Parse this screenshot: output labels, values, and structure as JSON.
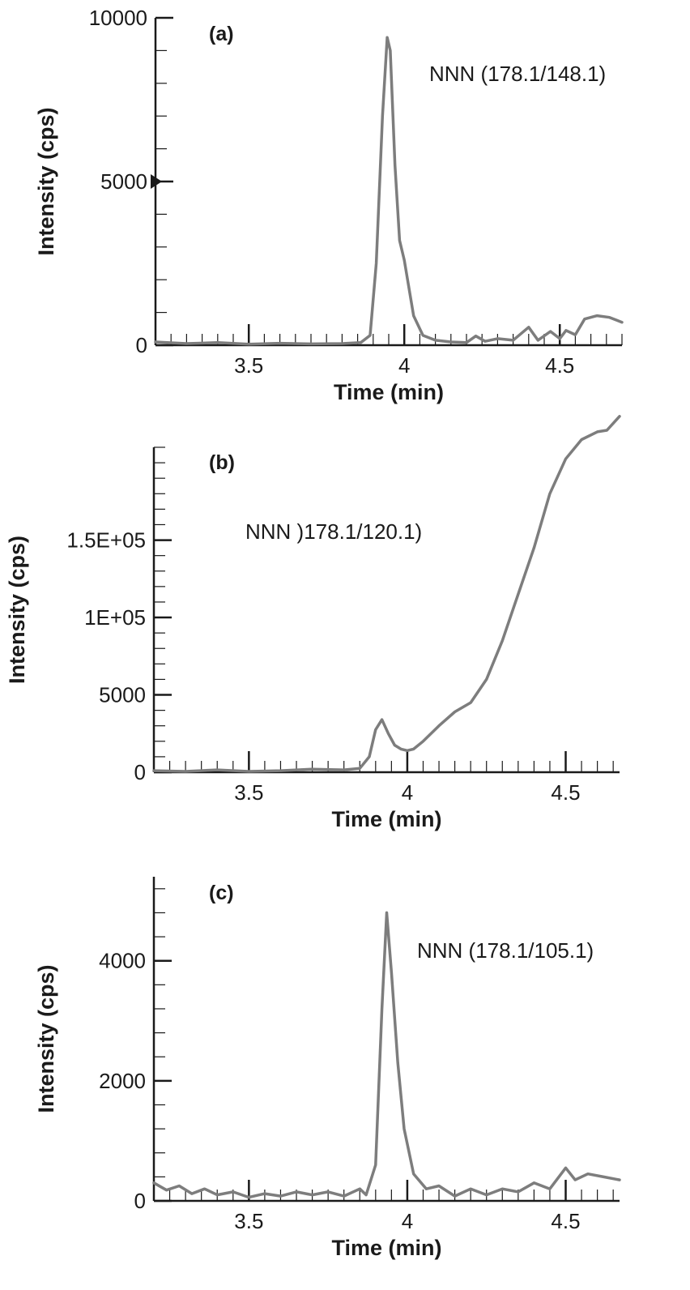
{
  "chart_data": [
    {
      "type": "line",
      "panel_label": "(a)",
      "annotation": "NNN (178.1/148.1)",
      "xlabel": "Time (min)",
      "ylabel": "Intensity (cps)",
      "xlim": [
        3.2,
        4.7
      ],
      "ylim": [
        0,
        10000
      ],
      "x_ticks": [
        3.5,
        4,
        4.5
      ],
      "x_tick_labels": [
        "3.5",
        "4",
        "4.5"
      ],
      "y_ticks": [
        0,
        5000,
        10000
      ],
      "y_tick_labels": [
        "0",
        "5000",
        "10000"
      ],
      "series": [
        {
          "name": "NNN (178.1/148.1)",
          "x": [
            3.2,
            3.3,
            3.4,
            3.5,
            3.6,
            3.7,
            3.8,
            3.86,
            3.89,
            3.91,
            3.93,
            3.945,
            3.955,
            3.97,
            3.985,
            4.0,
            4.03,
            4.06,
            4.1,
            4.15,
            4.2,
            4.23,
            4.26,
            4.3,
            4.35,
            4.4,
            4.43,
            4.47,
            4.5,
            4.52,
            4.55,
            4.58,
            4.62,
            4.66,
            4.7
          ],
          "values": [
            100,
            50,
            80,
            30,
            60,
            40,
            50,
            80,
            300,
            2500,
            7000,
            9400,
            9000,
            5500,
            3200,
            2600,
            900,
            300,
            150,
            100,
            80,
            280,
            120,
            200,
            150,
            550,
            150,
            420,
            200,
            450,
            320,
            800,
            900,
            850,
            700
          ]
        }
      ]
    },
    {
      "type": "line",
      "panel_label": "(b)",
      "annotation": "NNN )178.1/120.1)",
      "xlabel": "Time (min)",
      "ylabel": "Intensity (cps)",
      "xlim": [
        3.2,
        4.67
      ],
      "ylim": [
        0,
        4.2
      ],
      "x_ticks": [
        3.5,
        4,
        4.5
      ],
      "x_tick_labels": [
        "3.5",
        "4",
        "4.5"
      ],
      "y_ticks": [
        0,
        1,
        2,
        3
      ],
      "y_tick_labels": [
        "0",
        "5000",
        "1E+05",
        "1.5E+05"
      ],
      "series": [
        {
          "name": "NNN )178.1/120.1)",
          "x": [
            3.2,
            3.3,
            3.4,
            3.5,
            3.6,
            3.7,
            3.8,
            3.85,
            3.88,
            3.9,
            3.92,
            3.94,
            3.96,
            3.98,
            4.0,
            4.02,
            4.05,
            4.1,
            4.15,
            4.2,
            4.25,
            4.3,
            4.35,
            4.4,
            4.45,
            4.5,
            4.55,
            4.6,
            4.63,
            4.67
          ],
          "values": [
            0.02,
            0.01,
            0.03,
            0.01,
            0.02,
            0.04,
            0.03,
            0.05,
            0.2,
            0.55,
            0.68,
            0.5,
            0.35,
            0.3,
            0.28,
            0.3,
            0.4,
            0.6,
            0.78,
            0.9,
            1.2,
            1.7,
            2.3,
            2.9,
            3.6,
            4.05,
            4.3,
            4.4,
            4.42,
            4.6
          ]
        }
      ]
    },
    {
      "type": "line",
      "panel_label": "(c)",
      "annotation": "NNN (178.1/105.1)",
      "xlabel": "Time (min)",
      "ylabel": "Intensity (cps)",
      "xlim": [
        3.2,
        4.67
      ],
      "ylim": [
        0,
        5400
      ],
      "x_ticks": [
        3.5,
        4,
        4.5
      ],
      "x_tick_labels": [
        "3.5",
        "4",
        "4.5"
      ],
      "y_ticks": [
        0,
        2000,
        4000
      ],
      "y_tick_labels": [
        "0",
        "2000",
        "4000"
      ],
      "series": [
        {
          "name": "NNN (178.1/105.1)",
          "x": [
            3.2,
            3.24,
            3.28,
            3.32,
            3.36,
            3.4,
            3.45,
            3.5,
            3.55,
            3.6,
            3.65,
            3.7,
            3.75,
            3.8,
            3.85,
            3.87,
            3.9,
            3.92,
            3.935,
            3.95,
            3.97,
            3.99,
            4.02,
            4.06,
            4.1,
            4.15,
            4.2,
            4.25,
            4.3,
            4.35,
            4.4,
            4.45,
            4.5,
            4.53,
            4.57,
            4.62,
            4.67
          ],
          "values": [
            300,
            180,
            250,
            120,
            200,
            100,
            150,
            60,
            120,
            80,
            150,
            100,
            150,
            80,
            200,
            100,
            600,
            3200,
            4800,
            3800,
            2300,
            1200,
            450,
            200,
            250,
            80,
            200,
            100,
            200,
            150,
            300,
            200,
            550,
            350,
            450,
            400,
            350
          ]
        }
      ]
    }
  ]
}
